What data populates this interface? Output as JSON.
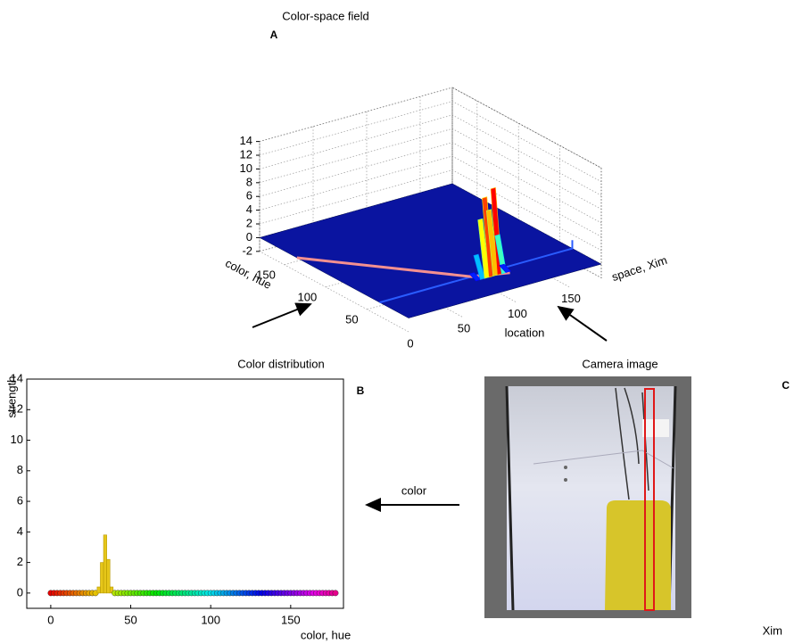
{
  "chart_data": [
    {
      "type": "surface3d",
      "title": "Color-space field",
      "panel": "A",
      "xlabel": "space, Xim",
      "ylabel": "color, hue",
      "xlim": [
        0,
        180
      ],
      "ylim": [
        0,
        180
      ],
      "zlim": [
        -2,
        14
      ],
      "xticks": [
        0,
        50,
        100,
        150
      ],
      "yticks": [
        50,
        100,
        150
      ],
      "zticks": [
        -2,
        0,
        2,
        4,
        6,
        8,
        10,
        12,
        14
      ],
      "grid": true,
      "color": "#0a14a0",
      "colormap": "jet",
      "ridge_hue": 35,
      "x": [
        86,
        90,
        94,
        98,
        102,
        106,
        110,
        114
      ],
      "values": [
        0.5,
        3,
        8,
        11,
        9,
        12,
        5,
        0.5
      ]
    },
    {
      "type": "bar",
      "title": "Color distribution",
      "panel": "B",
      "xlabel": "color, hue",
      "ylabel": "strength",
      "xlim": [
        -15,
        183
      ],
      "ylim": [
        -1,
        14
      ],
      "xticks": [
        0,
        50,
        100,
        150
      ],
      "yticks": [
        0,
        2,
        4,
        6,
        8,
        10,
        12,
        14
      ],
      "color": "#e6c619",
      "colormap": "hsv",
      "x": [
        0,
        2,
        4,
        6,
        8,
        10,
        12,
        14,
        16,
        18,
        20,
        22,
        24,
        26,
        28,
        30,
        32,
        34,
        36,
        38,
        40,
        42,
        44,
        46,
        48,
        50,
        52,
        54,
        56,
        58,
        60,
        62,
        64,
        66,
        68,
        70,
        72,
        74,
        76,
        78,
        80,
        82,
        84,
        86,
        88,
        90,
        92,
        94,
        96,
        98,
        100,
        102,
        104,
        106,
        108,
        110,
        112,
        114,
        116,
        118,
        120,
        122,
        124,
        126,
        128,
        130,
        132,
        134,
        136,
        138,
        140,
        142,
        144,
        146,
        148,
        150,
        152,
        154,
        156,
        158,
        160,
        162,
        164,
        166,
        168,
        170,
        172,
        174,
        176,
        178
      ],
      "values": [
        0,
        0,
        0,
        0,
        0,
        0,
        0,
        0,
        0,
        0,
        0,
        0,
        0,
        0,
        0,
        0.4,
        2.0,
        3.8,
        2.2,
        0.4,
        0,
        0,
        0,
        0,
        0,
        0,
        0,
        0,
        0,
        0,
        0,
        0,
        0,
        0,
        0,
        0,
        0,
        0,
        0,
        0,
        0,
        0,
        0,
        0,
        0,
        0,
        0,
        0,
        0,
        0,
        0,
        0,
        0,
        0,
        0,
        0,
        0,
        0,
        0,
        0,
        0,
        0,
        0,
        0,
        0,
        0,
        0,
        0,
        0,
        0,
        0,
        0,
        0,
        0,
        0,
        0,
        0,
        0,
        0,
        0,
        0,
        0,
        0,
        0,
        0,
        0,
        0,
        0,
        0,
        0
      ]
    },
    {
      "type": "image",
      "title": "Camera image",
      "panel": "C",
      "xlabel": "Xim"
    }
  ],
  "annotations": [
    "location",
    "color"
  ]
}
